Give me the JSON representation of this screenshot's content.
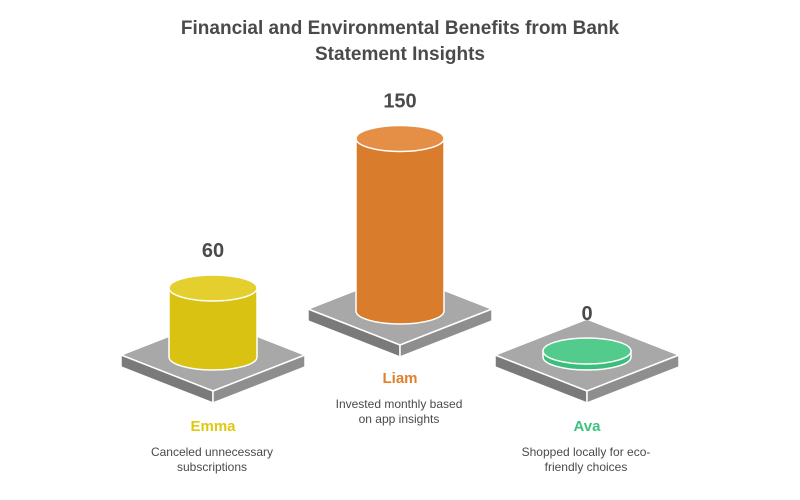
{
  "chart_data": {
    "type": "bar",
    "title": "Financial and Environmental Benefits from Bank Statement Insights",
    "title_lines": [
      "Financial and Environmental Benefits from Bank",
      "Statement Insights"
    ],
    "categories": [
      "Emma",
      "Liam",
      "Ava"
    ],
    "values": [
      60,
      150,
      0
    ],
    "value_labels": [
      "60",
      "150",
      "0"
    ],
    "descriptions": [
      [
        "Canceled unnecessary",
        "subscriptions"
      ],
      [
        "Invested monthly based",
        "on app insights"
      ],
      [
        "Shopped locally for eco-",
        "friendly choices"
      ]
    ],
    "colors": [
      "#e0c812",
      "#e0802c",
      "#3cc47e"
    ],
    "ylim": [
      0,
      150
    ]
  }
}
